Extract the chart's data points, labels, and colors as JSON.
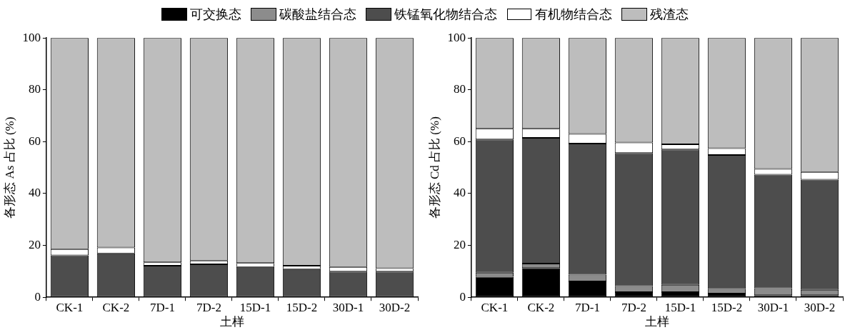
{
  "chart_data": [
    {
      "type": "bar",
      "stacked": true,
      "xlabel": "土样",
      "ylabel": "各形态 As 占比 (%)",
      "categories": [
        "CK-1",
        "CK-2",
        "7D-1",
        "7D-2",
        "15D-1",
        "15D-2",
        "30D-1",
        "30D-2"
      ],
      "ylim": [
        0,
        100
      ],
      "yticks": [
        0,
        20,
        40,
        60,
        80,
        100
      ],
      "grid": false,
      "legend": "top",
      "series": [
        {
          "name": "可交换态",
          "color": "#000000",
          "values": [
            null,
            null,
            null,
            null,
            null,
            null,
            null,
            null
          ]
        },
        {
          "name": "碳酸盐结合态",
          "color": "#8c8c8c",
          "values": [
            null,
            null,
            null,
            null,
            null,
            null,
            null,
            null
          ]
        },
        {
          "name": "铁锰氧化物结合态",
          "color": "#4d4d4d",
          "values": [
            16.2,
            16.9,
            12.2,
            12.7,
            11.7,
            10.9,
            9.9,
            9.9
          ]
        },
        {
          "name": "有机物结合态",
          "color": "#ffffff",
          "values": [
            2.4,
            2.3,
            1.3,
            1.5,
            1.5,
            1.3,
            1.8,
            1.3
          ]
        },
        {
          "name": "残渣态",
          "color": "#bdbdbd",
          "values": [
            81.4,
            80.8,
            86.5,
            85.8,
            86.8,
            87.8,
            88.3,
            88.8
          ]
        }
      ]
    },
    {
      "type": "bar",
      "stacked": true,
      "xlabel": "土样",
      "ylabel": "各形态 Cd 占比 (%)",
      "categories": [
        "CK-1",
        "CK-2",
        "7D-1",
        "7D-2",
        "15D-1",
        "15D-2",
        "30D-1",
        "30D-2"
      ],
      "ylim": [
        0,
        100
      ],
      "yticks": [
        0,
        20,
        40,
        60,
        80,
        100
      ],
      "grid": false,
      "series": [
        {
          "color": "#000000",
          "values": [
            7.9,
            11.3,
            6.1,
            2.0,
            2.0,
            1.4,
            0.8,
            0.8
          ]
        },
        {
          "color": "#8c8c8c",
          "values": [
            1.6,
            1.7,
            2.6,
            2.3,
            2.8,
            1.8,
            2.7,
            2.1
          ]
        },
        {
          "color": "#4d4d4d",
          "values": [
            51.4,
            48.5,
            50.6,
            51.3,
            52.2,
            51.7,
            43.8,
            42.5
          ]
        },
        {
          "color": "#ffffff",
          "values": [
            4.1,
            3.5,
            3.7,
            4.1,
            2.0,
            2.6,
            2.2,
            2.9
          ]
        },
        {
          "color": "#bdbdbd",
          "values": [
            35.0,
            35.0,
            37.0,
            40.3,
            41.0,
            42.5,
            50.5,
            51.7
          ]
        }
      ]
    }
  ]
}
